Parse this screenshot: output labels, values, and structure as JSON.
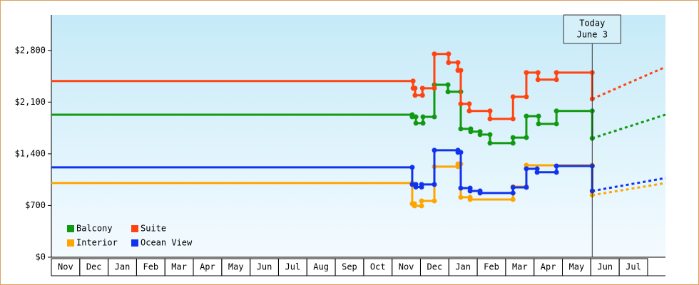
{
  "chart_data": {
    "type": "step-line",
    "xlim": [
      0,
      21.63
    ],
    "ylim": [
      0,
      3280
    ],
    "yticks": [
      {
        "value": 0,
        "label": "$0"
      },
      {
        "value": 700,
        "label": "$700"
      },
      {
        "value": 1400,
        "label": "$1,400"
      },
      {
        "value": 2100,
        "label": "$2,100"
      },
      {
        "value": 2800,
        "label": "$2,800"
      }
    ],
    "month_labels": [
      "Nov",
      "Dec",
      "Jan",
      "Feb",
      "Mar",
      "Apr",
      "May",
      "Jun",
      "Jul",
      "Aug",
      "Sep",
      "Oct",
      "Nov",
      "Dec",
      "Jan",
      "Feb",
      "Mar",
      "Apr",
      "May",
      "Jun",
      "Jul"
    ],
    "today": {
      "x": 19.05,
      "lines": [
        "Today",
        "June 3"
      ]
    },
    "legend_position": "lower left",
    "series": [
      {
        "name": "Balcony",
        "color": "#119911",
        "x": [
          0,
          12.71,
          12.84,
          13.09,
          13.49,
          13.97,
          14.42,
          14.77,
          15.1,
          15.45,
          16.26,
          16.73,
          17.16,
          17.79,
          19.05
        ],
        "values": [
          1930,
          1900,
          1815,
          1900,
          2335,
          2240,
          1738,
          1700,
          1660,
          1545,
          1620,
          1910,
          1805,
          1980,
          1610
        ],
        "forecast_x": [
          19.05,
          21.63
        ],
        "forecast_values": [
          1610,
          1930
        ]
      },
      {
        "name": "Suite",
        "color": "#ff4411",
        "x": [
          0,
          12.74,
          12.81,
          13.07,
          13.49,
          13.99,
          14.32,
          14.42,
          14.72,
          15.45,
          16.26,
          16.73,
          17.14,
          17.79,
          19.05
        ],
        "values": [
          2385,
          2288,
          2192,
          2288,
          2752,
          2636,
          2530,
          2076,
          1980,
          1873,
          2172,
          2500,
          2404,
          2500,
          2143
        ],
        "forecast_x": [
          19.05,
          21.63
        ],
        "forecast_values": [
          2143,
          2576
        ]
      },
      {
        "name": "Interior",
        "color": "#ffa500",
        "x": [
          0,
          12.71,
          12.79,
          13.04,
          13.49,
          14.32,
          14.42,
          14.75,
          16.26,
          16.73,
          19.05
        ],
        "values": [
          1004,
          724,
          695,
          762,
          1226,
          1264,
          811,
          782,
          955,
          1245,
          840
        ],
        "forecast_x": [
          19.05,
          21.63
        ],
        "forecast_values": [
          840,
          1004
        ]
      },
      {
        "name": "Ocean View",
        "color": "#1133ee",
        "x": [
          0,
          12.71,
          12.84,
          13.04,
          13.49,
          14.32,
          14.42,
          14.75,
          15.1,
          16.26,
          16.73,
          17.11,
          17.79,
          19.05
        ],
        "values": [
          1217,
          985,
          950,
          985,
          1448,
          1420,
          936,
          897,
          869,
          946,
          1197,
          1150,
          1235,
          897
        ],
        "forecast_x": [
          19.05,
          21.63
        ],
        "forecast_values": [
          897,
          1072
        ]
      }
    ]
  }
}
